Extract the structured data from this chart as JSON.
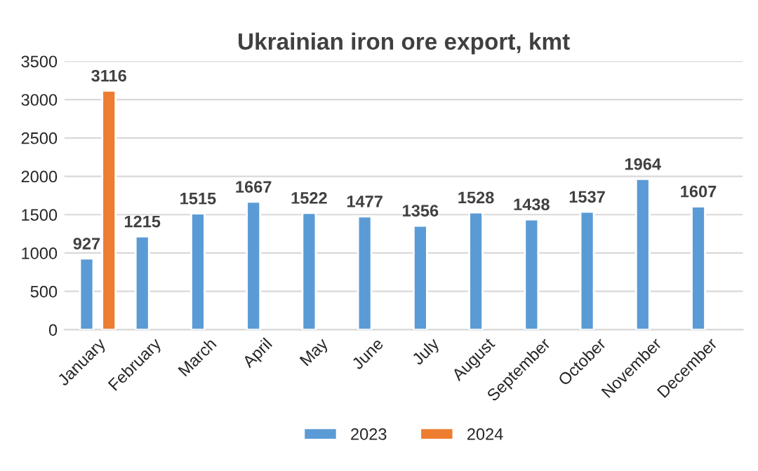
{
  "chart_data": {
    "type": "bar",
    "title": "Ukrainian iron ore export, kmt",
    "categories": [
      "January",
      "February",
      "March",
      "April",
      "May",
      "June",
      "July",
      "August",
      "September",
      "October",
      "November",
      "December"
    ],
    "series": [
      {
        "name": "2023",
        "color": "#5b9bd5",
        "values": [
          927,
          1215,
          1515,
          1667,
          1522,
          1477,
          1356,
          1528,
          1438,
          1537,
          1964,
          1607
        ]
      },
      {
        "name": "2024",
        "color": "#ed7d31",
        "values": [
          3116,
          null,
          null,
          null,
          null,
          null,
          null,
          null,
          null,
          null,
          null,
          null
        ]
      }
    ],
    "ylim": [
      0,
      3500
    ],
    "yticks": [
      0,
      500,
      1000,
      1500,
      2000,
      2500,
      3000,
      3500
    ],
    "grid": "y",
    "legend": "bottom",
    "data_labels": true
  }
}
